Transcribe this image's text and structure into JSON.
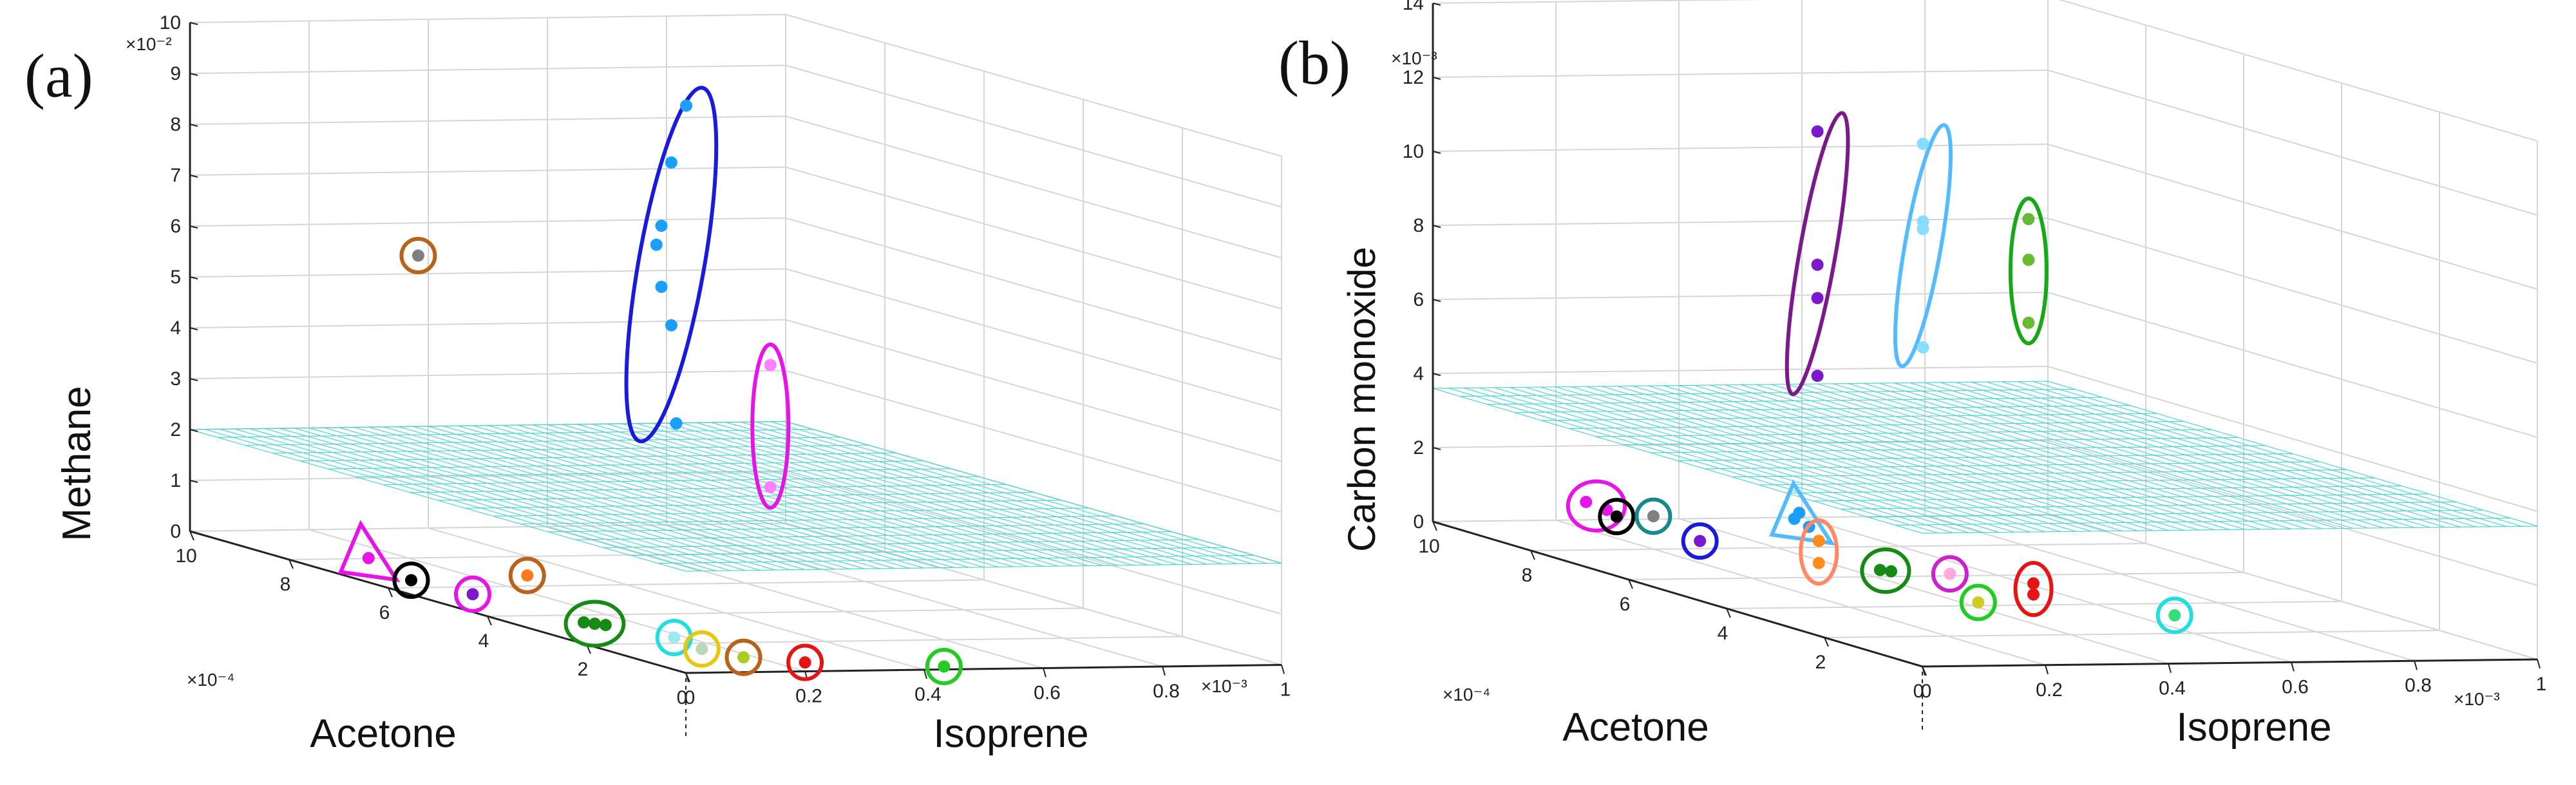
{
  "chart_data": [
    {
      "type": "scatter3d",
      "panel_label": "(a)",
      "xlabel": "Acetone",
      "ylabel": "Isoprene",
      "zlabel": "Methane",
      "x_multiplier": "×10⁻⁴",
      "y_multiplier": "×10⁻³",
      "z_multiplier": "×10⁻²",
      "x_ticks": [
        "10",
        "8",
        "6",
        "4",
        "2",
        "0"
      ],
      "y_ticks": [
        "0",
        "0.2",
        "0.4",
        "0.6",
        "0.8",
        "1"
      ],
      "z_ticks": [
        "0",
        "1",
        "2",
        "3",
        "4",
        "5",
        "6",
        "7",
        "8",
        "9",
        "10"
      ],
      "xlim": [
        0,
        10
      ],
      "ylim": [
        0,
        1
      ],
      "zlim": [
        0,
        10
      ],
      "threshold_plane_z": 2,
      "clusters": [
        {
          "marker": "ellipse",
          "color": "#1a1adc",
          "points": [
            [
              6.0,
              0.5,
              9.4
            ],
            [
              6.3,
              0.5,
              8.2
            ],
            [
              6.5,
              0.5,
              6.9
            ],
            [
              6.6,
              0.5,
              6.5
            ],
            [
              6.5,
              0.5,
              5.7
            ],
            [
              6.3,
              0.5,
              5.0
            ],
            [
              6.2,
              0.5,
              3.1
            ]
          ],
          "point_color": "#1a9fff"
        },
        {
          "marker": "ellipse",
          "color": "#e614e6",
          "points": [
            [
              2.5,
              0.35,
              5.3
            ],
            [
              2.5,
              0.35,
              2.9
            ]
          ],
          "point_color": "#ff80ff"
        },
        {
          "marker": "circle",
          "color": "#b8621a",
          "points": [
            [
              7.8,
              0.2,
              6.0
            ]
          ],
          "point_color": "#808080"
        },
        {
          "marker": "triangle",
          "color": "#e614e6",
          "points": [
            [
              7.0,
              0.05,
              0.3
            ]
          ],
          "point_color": "#e614e6"
        },
        {
          "marker": "circle",
          "color": "#000000",
          "points": [
            [
              6.5,
              0.08,
              0.0
            ]
          ],
          "point_color": "#000000"
        },
        {
          "marker": "circle",
          "color": "#e614e6",
          "points": [
            [
              5.5,
              0.1,
              0.0
            ]
          ],
          "point_color": "#7a1acc"
        },
        {
          "marker": "circle",
          "color": "#b8621a",
          "points": [
            [
              5.0,
              0.15,
              0.5
            ]
          ],
          "point_color": "#ff7a1a"
        },
        {
          "marker": "ellipse",
          "color": "#158a15",
          "points": [
            [
              3.5,
              0.12,
              0.0
            ],
            [
              3.4,
              0.13,
              0.0
            ],
            [
              3.3,
              0.14,
              0.0
            ]
          ],
          "point_color": "#158a15"
        },
        {
          "marker": "circle",
          "color": "#22dede",
          "points": [
            [
              2.4,
              0.18,
              0.0
            ]
          ],
          "point_color": "#9ee8ee"
        },
        {
          "marker": "circle",
          "color": "#e6c814",
          "points": [
            [
              1.6,
              0.16,
              0.0
            ]
          ],
          "point_color": "#b8d8b8"
        },
        {
          "marker": "circle",
          "color": "#b8621a",
          "points": [
            [
              1.0,
              0.18,
              0.0
            ]
          ],
          "point_color": "#aacc22"
        },
        {
          "marker": "circle",
          "color": "#e61414",
          "points": [
            [
              0.6,
              0.25,
              0.0
            ]
          ],
          "point_color": "#e61414"
        },
        {
          "marker": "circle",
          "color": "#22cc22",
          "points": [
            [
              0.2,
              0.45,
              0.0
            ]
          ],
          "point_color": "#22cc22"
        }
      ]
    },
    {
      "type": "scatter3d",
      "panel_label": "(b)",
      "xlabel": "Acetone",
      "ylabel": "Isoprene",
      "zlabel": "Carbon monoxide",
      "x_multiplier": "×10⁻⁴",
      "y_multiplier": "×10⁻³",
      "z_multiplier": "×10⁻³",
      "x_ticks": [
        "10",
        "8",
        "6",
        "4",
        "2",
        "0"
      ],
      "y_ticks": [
        "0",
        "0.2",
        "0.4",
        "0.6",
        "0.8",
        "1"
      ],
      "z_ticks": [
        "0",
        "2",
        "4",
        "6",
        "8",
        "10",
        "12",
        "14"
      ],
      "xlim": [
        0,
        10
      ],
      "ylim": [
        0,
        1
      ],
      "zlim": [
        0,
        14
      ],
      "threshold_plane_z": 3.6,
      "clusters": [
        {
          "marker": "ellipse",
          "color": "#7a1a8a",
          "points": [
            [
              3.4,
              0.1,
              13.1
            ],
            [
              3.4,
              0.1,
              9.5
            ],
            [
              3.4,
              0.1,
              8.6
            ],
            [
              3.4,
              0.1,
              6.5
            ]
          ],
          "point_color": "#7a1acc"
        },
        {
          "marker": "ellipse",
          "color": "#55bbff",
          "points": [
            [
              2.5,
              0.2,
              13.1
            ],
            [
              2.5,
              0.2,
              11.0
            ],
            [
              2.5,
              0.2,
              10.8
            ],
            [
              2.5,
              0.2,
              7.6
            ]
          ],
          "point_color": "#88ddff"
        },
        {
          "marker": "ellipse",
          "color": "#15aa15",
          "points": [
            [
              1.6,
              0.3,
              11.4
            ],
            [
              1.6,
              0.3,
              10.3
            ],
            [
              1.6,
              0.3,
              8.6
            ]
          ],
          "point_color": "#66bb33"
        },
        {
          "marker": "ellipse",
          "color": "#e614e6",
          "points": [
            [
              7.5,
              0.05,
              1.5
            ],
            [
              7.2,
              0.06,
              1.4
            ]
          ],
          "point_color": "#e614e6"
        },
        {
          "marker": "circle",
          "color": "#000000",
          "points": [
            [
              7.0,
              0.06,
              1.3
            ]
          ],
          "point_color": "#000000"
        },
        {
          "marker": "circle",
          "color": "#168a8a",
          "points": [
            [
              6.5,
              0.08,
              1.5
            ]
          ],
          "point_color": "#808080"
        },
        {
          "marker": "circle",
          "color": "#1a1adc",
          "points": [
            [
              5.8,
              0.1,
              1.1
            ]
          ],
          "point_color": "#7a1acc"
        },
        {
          "marker": "triangle",
          "color": "#55bbff",
          "points": [
            [
              4.5,
              0.15,
              2.2
            ],
            [
              4.4,
              0.15,
              2.4
            ],
            [
              4.2,
              0.15,
              2.1
            ]
          ],
          "point_color": "#1a9fff"
        },
        {
          "marker": "ellipse",
          "color": "#ff8866",
          "points": [
            [
              4.0,
              0.15,
              1.8
            ],
            [
              4.0,
              0.15,
              1.2
            ]
          ],
          "point_color": "#ff8c1a"
        },
        {
          "marker": "ellipse",
          "color": "#158a15",
          "points": [
            [
              3.0,
              0.17,
              1.4
            ],
            [
              2.9,
              0.18,
              1.4
            ]
          ],
          "point_color": "#158a15"
        },
        {
          "marker": "circle",
          "color": "#cc22cc",
          "points": [
            [
              2.2,
              0.22,
              1.6
            ]
          ],
          "point_color": "#ffaadd"
        },
        {
          "marker": "circle",
          "color": "#22cc22",
          "points": [
            [
              2.0,
              0.25,
              0.9
            ]
          ],
          "point_color": "#cccc22"
        },
        {
          "marker": "ellipse",
          "color": "#e61414",
          "points": [
            [
              1.5,
              0.3,
              1.6
            ],
            [
              1.5,
              0.3,
              1.3
            ]
          ],
          "point_color": "#e61414"
        },
        {
          "marker": "circle",
          "color": "#22dede",
          "points": [
            [
              0.5,
              0.45,
              1.1
            ]
          ],
          "point_color": "#33dd77"
        }
      ]
    }
  ]
}
